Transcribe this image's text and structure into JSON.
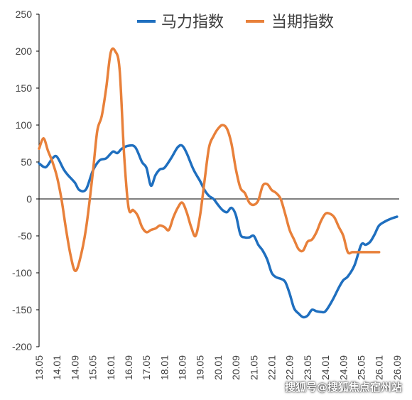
{
  "watermark": "搜狐号@搜狐焦点宿州站",
  "chart_data": {
    "type": "line",
    "ylim": [
      -200,
      250
    ],
    "yticks": [
      -200,
      -150,
      -100,
      -50,
      0,
      50,
      100,
      150,
      200,
      250
    ],
    "xlim": [
      2013.333,
      2026.75
    ],
    "xticks": [
      "13.05",
      "14.01",
      "14.09",
      "15.05",
      "16.01",
      "16.09",
      "17.05",
      "18.01",
      "18.09",
      "19.05",
      "20.01",
      "20.09",
      "21.05",
      "22.01",
      "22.09",
      "23.05",
      "24.01",
      "24.09",
      "25.05",
      "26.01",
      "26.09"
    ],
    "legend_position": "top",
    "colors": {
      "axis": "#000000",
      "tick_text": "#404040"
    },
    "series": [
      {
        "name": "马力指数",
        "color": "#1f6fbf",
        "x": [
          "13.05",
          "13.08",
          "13.11",
          "14.01",
          "14.04",
          "14.06",
          "14.09",
          "14.11",
          "15.02",
          "15.05",
          "15.08",
          "15.11",
          "16.02",
          "16.04",
          "16.06",
          "16.09",
          "16.12",
          "17.03",
          "17.05",
          "17.07",
          "17.09",
          "17.11",
          "18.01",
          "18.04",
          "18.07",
          "18.09",
          "18.11",
          "19.02",
          "19.05",
          "19.07",
          "19.09",
          "19.11",
          "20.01",
          "20.03",
          "20.05",
          "20.07",
          "20.09",
          "20.11",
          "21.01",
          "21.03",
          "21.05",
          "21.07",
          "21.09",
          "21.11",
          "22.01",
          "22.03",
          "22.05",
          "22.07",
          "22.09",
          "22.11",
          "23.01",
          "23.03",
          "23.05",
          "23.07",
          "23.09",
          "23.11",
          "24.01",
          "24.04",
          "24.07",
          "24.09",
          "24.11",
          "25.02",
          "25.05",
          "25.07",
          "25.09",
          "25.11",
          "26.01",
          "26.04",
          "26.07",
          "26.09"
        ],
        "values": [
          48,
          43,
          55,
          57,
          40,
          32,
          22,
          12,
          13,
          38,
          52,
          55,
          64,
          62,
          68,
          72,
          70,
          50,
          42,
          18,
          32,
          40,
          42,
          55,
          70,
          72,
          62,
          40,
          24,
          12,
          4,
          0,
          -8,
          -15,
          -18,
          -12,
          -22,
          -48,
          -52,
          -52,
          -50,
          -62,
          -70,
          -82,
          -100,
          -106,
          -108,
          -112,
          -128,
          -148,
          -155,
          -160,
          -158,
          -150,
          -152,
          -153,
          -152,
          -138,
          -120,
          -110,
          -105,
          -90,
          -62,
          -62,
          -58,
          -48,
          -36,
          -30,
          -26,
          -24
        ]
      },
      {
        "name": "当期指数",
        "color": "#e8803a",
        "x": [
          "13.05",
          "13.07",
          "13.09",
          "13.11",
          "14.01",
          "14.03",
          "14.05",
          "14.07",
          "14.09",
          "14.11",
          "15.02",
          "15.05",
          "15.07",
          "15.09",
          "15.11",
          "16.01",
          "16.03",
          "16.05",
          "16.07",
          "16.09",
          "16.11",
          "17.01",
          "17.03",
          "17.05",
          "17.07",
          "17.09",
          "17.11",
          "18.01",
          "18.03",
          "18.05",
          "18.07",
          "18.09",
          "18.11",
          "19.01",
          "19.03",
          "19.05",
          "19.07",
          "19.09",
          "19.11",
          "20.01",
          "20.03",
          "20.05",
          "20.07",
          "20.09",
          "20.11",
          "21.01",
          "21.03",
          "21.05",
          "21.07",
          "21.09",
          "21.11",
          "22.01",
          "22.03",
          "22.05",
          "22.07",
          "22.09",
          "22.11",
          "23.01",
          "23.03",
          "23.05",
          "23.07",
          "23.09",
          "23.11",
          "24.01",
          "24.03",
          "24.05",
          "24.07",
          "24.09",
          "24.11",
          "25.01",
          "25.03",
          "25.05",
          "25.07",
          "25.09",
          "25.11",
          "26.01"
        ],
        "values": [
          68,
          82,
          65,
          50,
          30,
          0,
          -40,
          -75,
          -97,
          -85,
          -40,
          35,
          92,
          112,
          150,
          198,
          200,
          175,
          60,
          -12,
          -15,
          -22,
          -38,
          -45,
          -42,
          -40,
          -36,
          -38,
          -42,
          -25,
          -12,
          -5,
          -18,
          -38,
          -50,
          -22,
          25,
          70,
          85,
          95,
          100,
          95,
          75,
          40,
          15,
          8,
          -5,
          -8,
          -2,
          18,
          20,
          12,
          8,
          0,
          -20,
          -42,
          -55,
          -68,
          -70,
          -58,
          -55,
          -45,
          -30,
          -20,
          -20,
          -25,
          -38,
          -50,
          -72,
          -72,
          -72,
          -72,
          -72,
          -72,
          -72,
          -72
        ]
      }
    ]
  }
}
